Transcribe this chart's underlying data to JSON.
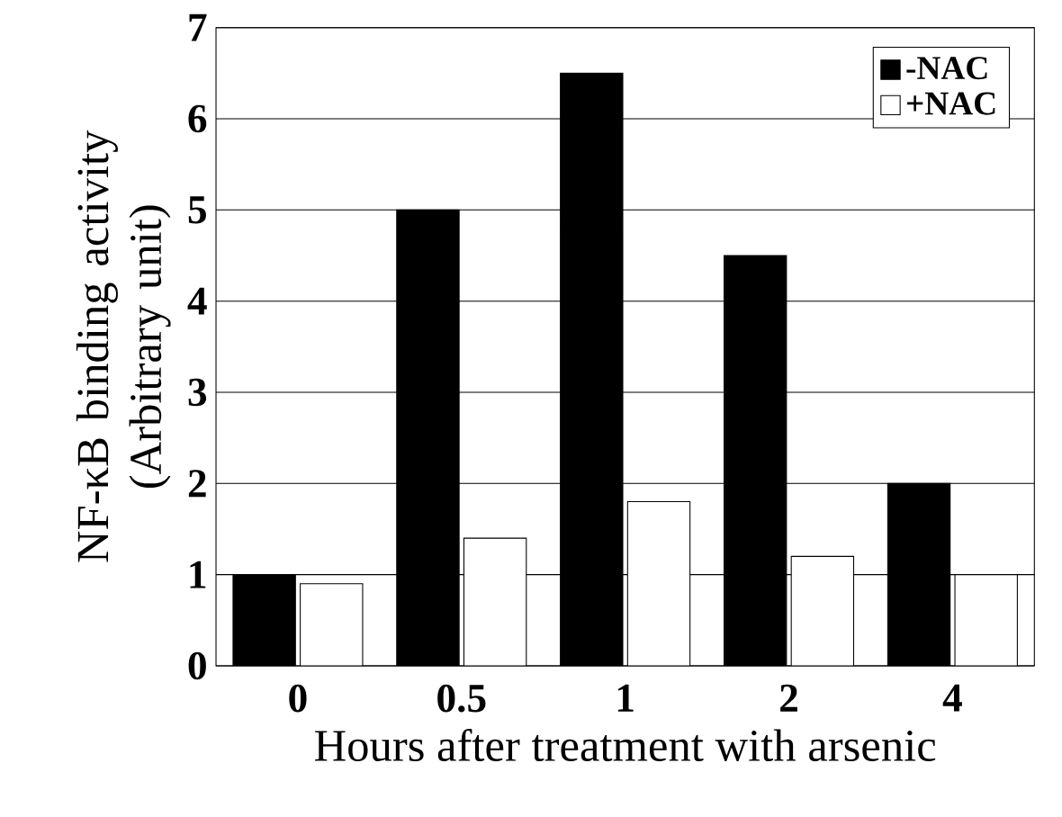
{
  "chart_data": {
    "type": "bar",
    "xlabel": "Hours after treatment with arsenic",
    "ylabel": "NF-κB binding activity (Arbitrary unit)",
    "categories": [
      "0",
      "0.5",
      "1",
      "2",
      "4"
    ],
    "series": [
      {
        "name": "-NAC",
        "color": "#000000",
        "values": [
          1,
          5,
          6.5,
          4.5,
          2
        ]
      },
      {
        "name": "+NAC",
        "color": "#ffffff",
        "values": [
          0.9,
          1.4,
          1.8,
          1.2,
          1.0
        ]
      }
    ],
    "ylim": [
      0,
      7
    ],
    "yticks": [
      0,
      1,
      2,
      3,
      4,
      5,
      6,
      7
    ],
    "grid": "y",
    "legend": "top right"
  }
}
